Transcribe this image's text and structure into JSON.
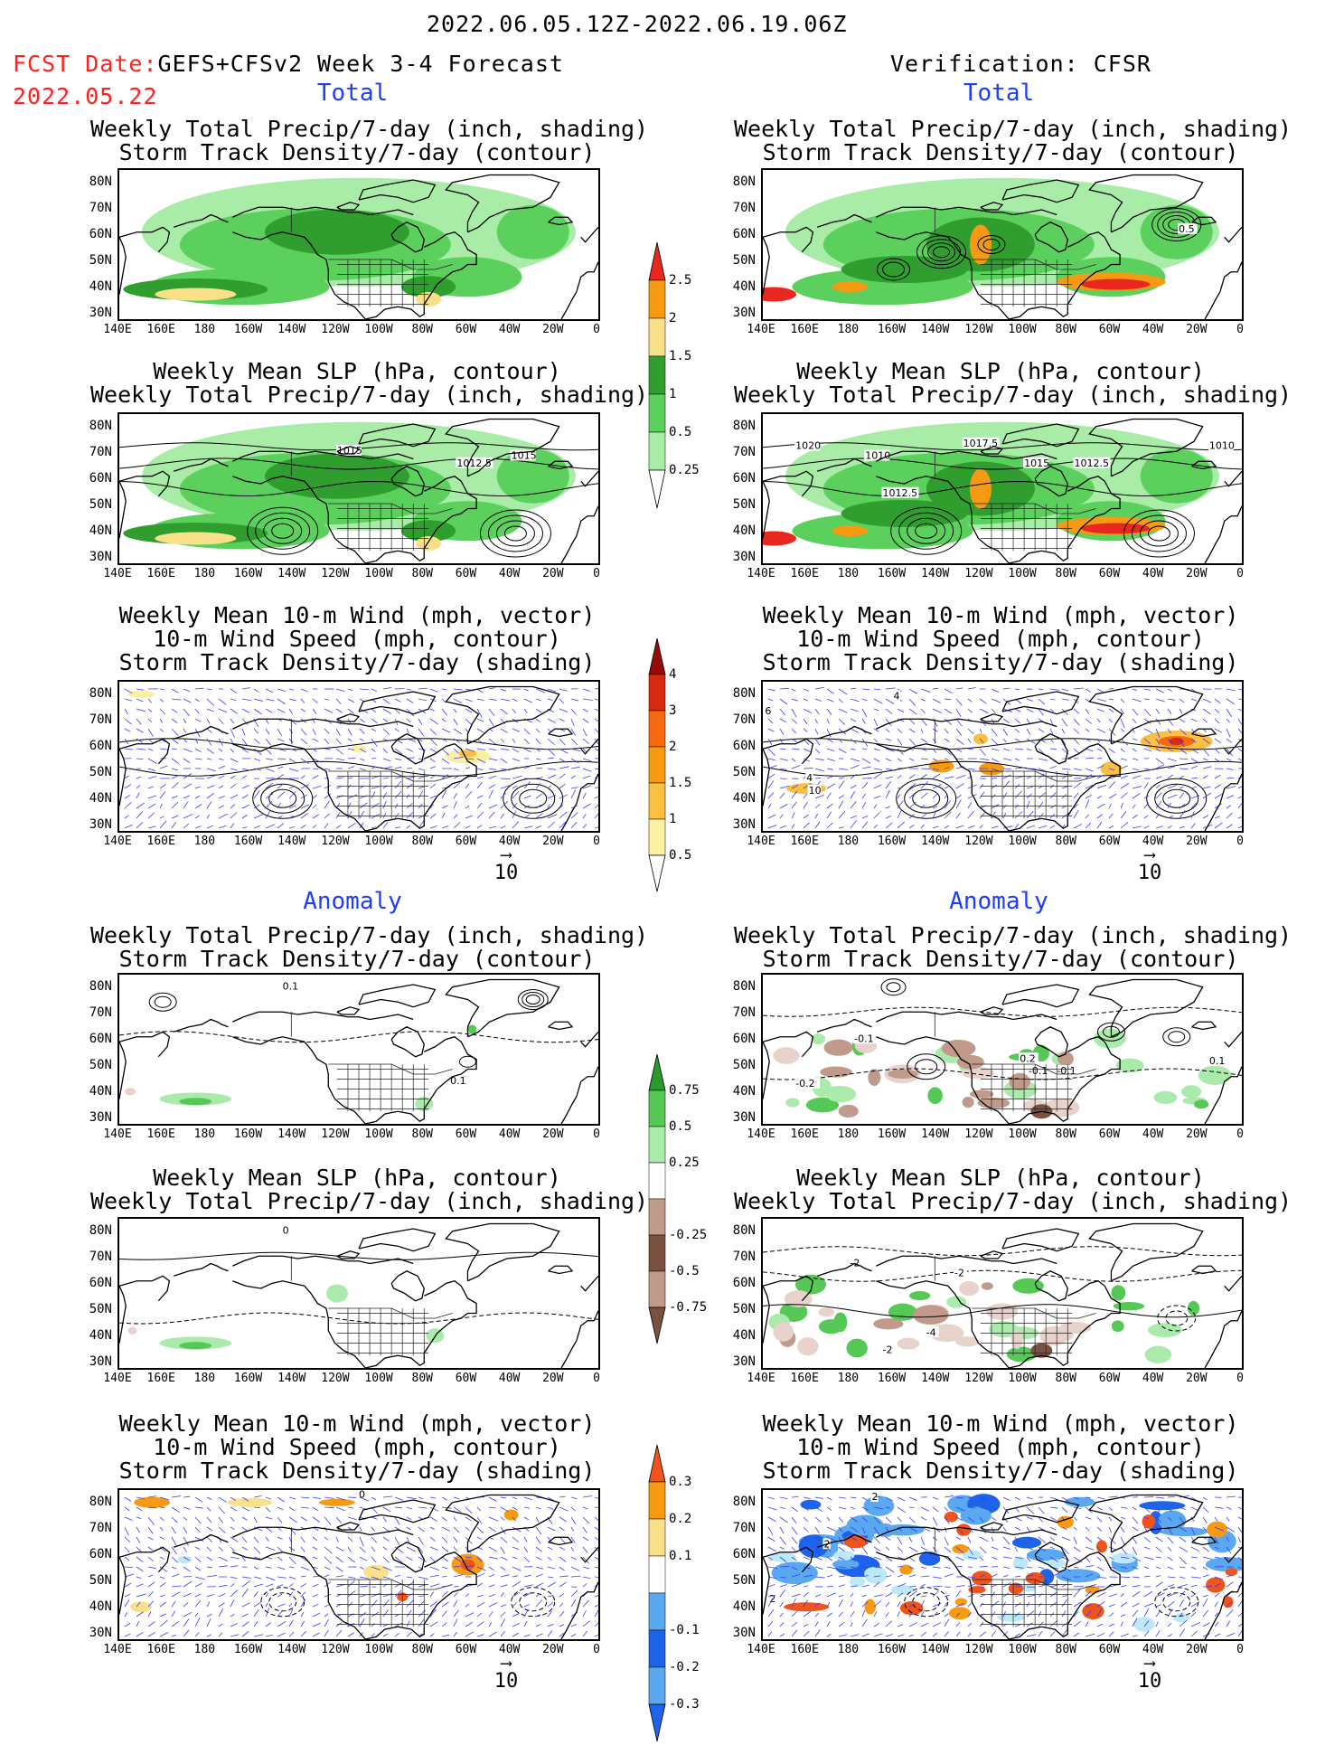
{
  "header": {
    "date_range": "2022.06.05.12Z-2022.06.19.06Z",
    "fcst_date_label": "FCST Date:",
    "forecast_label": "GEFS+CFSv2 Week 3-4 Forecast",
    "fcst_date": "2022.05.22",
    "verification": "Verification: CFSR"
  },
  "sections": {
    "total": "Total",
    "anomaly": "Anomaly"
  },
  "panel_titles": {
    "precip_storm": [
      "Weekly Total Precip/7-day (inch, shading)",
      "Storm Track Density/7-day (contour)"
    ],
    "slp_precip": [
      "Weekly Mean SLP (hPa, contour)",
      "Weekly Total Precip/7-day (inch, shading)"
    ],
    "wind_storm": [
      "Weekly Mean 10-m Wind (mph, vector)",
      "10-m Wind Speed (mph, contour)",
      "Storm Track Density/7-day (shading)"
    ]
  },
  "axes": {
    "lat_labels": [
      "80N",
      "70N",
      "60N",
      "50N",
      "40N",
      "30N"
    ],
    "lon_labels": [
      "140E",
      "160E",
      "180",
      "160W",
      "140W",
      "120W",
      "100W",
      "80W",
      "60W",
      "40W",
      "20W",
      "0"
    ]
  },
  "colorbars": {
    "precip_total": {
      "labels": [
        "2.5",
        "2",
        "1.5",
        "1",
        "0.5",
        "0.25"
      ],
      "colors": [
        "#e8281e",
        "#f59a12",
        "#fbe08a",
        "#2f9e2f",
        "#5cd05c",
        "#a8eca8"
      ]
    },
    "storm_total": {
      "labels": [
        "4",
        "3",
        "2",
        "1.5",
        "1",
        "0.5"
      ],
      "colors": [
        "#960a0a",
        "#d62a12",
        "#f56a10",
        "#f59a12",
        "#fbc042",
        "#fbf0a0"
      ]
    },
    "precip_anom": {
      "labels": [
        "0.75",
        "0.5",
        "0.25",
        "-0.25",
        "-0.5",
        "-0.75"
      ],
      "colors": [
        "#2a9a2a",
        "#56c856",
        "#aaeaaa",
        "#e8d2cc",
        "#c09a8a",
        "#7a5040"
      ]
    },
    "storm_anom": {
      "labels": [
        "0.3",
        "0.2",
        "0.1",
        "-0.1",
        "-0.2",
        "-0.3"
      ],
      "colors": [
        "#f0541a",
        "#f59a12",
        "#fbe08a",
        "#bde8f8",
        "#5aa8f0",
        "#1e64e8"
      ]
    }
  },
  "vector_reference": "10",
  "contour_labels": {
    "slp_fcst": [
      "1015",
      "1012.5",
      "1015"
    ],
    "slp_obs": [
      "1020",
      "1010",
      "1017.5",
      "1015",
      "1012.5",
      "1010",
      "1012.5"
    ],
    "storm_obs": [
      "0.5"
    ],
    "wind_obs": [
      "4",
      "6",
      "4",
      "10"
    ],
    "storm_anom_fcst": [
      "0.1",
      "0.1"
    ],
    "storm_anom_obs": [
      "-0.1",
      "-0.2",
      "0.2",
      "-0.1",
      "-0.1",
      "0.1"
    ],
    "slp_anom_fcst": [
      "0"
    ],
    "slp_anom_obs": [
      "-2",
      "-2",
      "-4",
      "-2"
    ],
    "wind_anom_fcst": [
      "0"
    ],
    "wind_anom_obs": [
      "2",
      "2",
      "2"
    ]
  }
}
